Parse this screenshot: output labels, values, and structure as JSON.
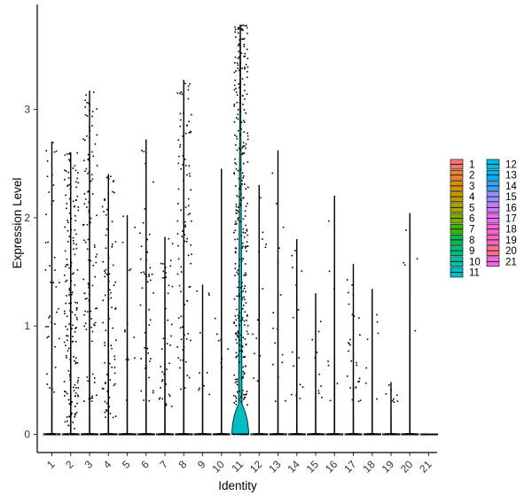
{
  "chart_data": {
    "type": "violin",
    "title": "",
    "xlabel": "Identity",
    "ylabel": "Expression Level",
    "ylim": [
      -0.18,
      3.9
    ],
    "yticks": [
      0,
      1,
      2,
      3
    ],
    "ytick_labels": [
      "0",
      "1",
      "2",
      "3"
    ],
    "grid": false,
    "legend_position": "right",
    "legend_columns": 2,
    "categories": [
      "1",
      "2",
      "3",
      "4",
      "5",
      "6",
      "7",
      "8",
      "9",
      "10",
      "11",
      "12",
      "13",
      "14",
      "15",
      "16",
      "17",
      "18",
      "19",
      "20",
      "21"
    ],
    "colors": [
      "#F8766D",
      "#EA8331",
      "#D89000",
      "#C09B00",
      "#A3A500",
      "#7CAE00",
      "#39B600",
      "#00BB4E",
      "#00BF7D",
      "#00C1A3",
      "#00BFC4",
      "#00BAE0",
      "#00B0F6",
      "#35A2FF",
      "#9590FF",
      "#C77CFF",
      "#E76BF3",
      "#FA62DB",
      "#FF62BC",
      "#FF6C91",
      "#F565E3"
    ],
    "legend_labels": [
      "1",
      "2",
      "3",
      "4",
      "5",
      "6",
      "7",
      "8",
      "9",
      "10",
      "11",
      "12",
      "13",
      "14",
      "15",
      "16",
      "17",
      "18",
      "19",
      "20",
      "21"
    ],
    "violin_max": [
      2.7,
      2.6,
      3.17,
      2.4,
      2.02,
      2.72,
      1.82,
      3.27,
      1.38,
      2.45,
      3.78,
      2.3,
      2.62,
      1.8,
      1.3,
      2.2,
      1.57,
      1.34,
      0.48,
      2.04,
      0.0
    ],
    "dot_density": [
      40,
      170,
      110,
      85,
      14,
      45,
      40,
      95,
      10,
      8,
      320,
      14,
      16,
      16,
      10,
      8,
      28,
      7,
      8,
      6,
      0
    ],
    "dot_range": [
      [
        0.3,
        2.7
      ],
      [
        0.05,
        2.6
      ],
      [
        0.3,
        3.17
      ],
      [
        0.15,
        2.4
      ],
      [
        0.3,
        2.02
      ],
      [
        0.3,
        2.72
      ],
      [
        0.25,
        1.82
      ],
      [
        0.3,
        3.27
      ],
      [
        0.3,
        1.38
      ],
      [
        0.3,
        2.45
      ],
      [
        0.25,
        3.78
      ],
      [
        0.3,
        2.3
      ],
      [
        0.3,
        2.62
      ],
      [
        0.3,
        1.8
      ],
      [
        0.3,
        1.3
      ],
      [
        0.3,
        2.2
      ],
      [
        0.3,
        1.57
      ],
      [
        0.3,
        1.34
      ],
      [
        0.25,
        0.48
      ],
      [
        0.6,
        2.04
      ],
      [
        0,
        0
      ]
    ]
  }
}
